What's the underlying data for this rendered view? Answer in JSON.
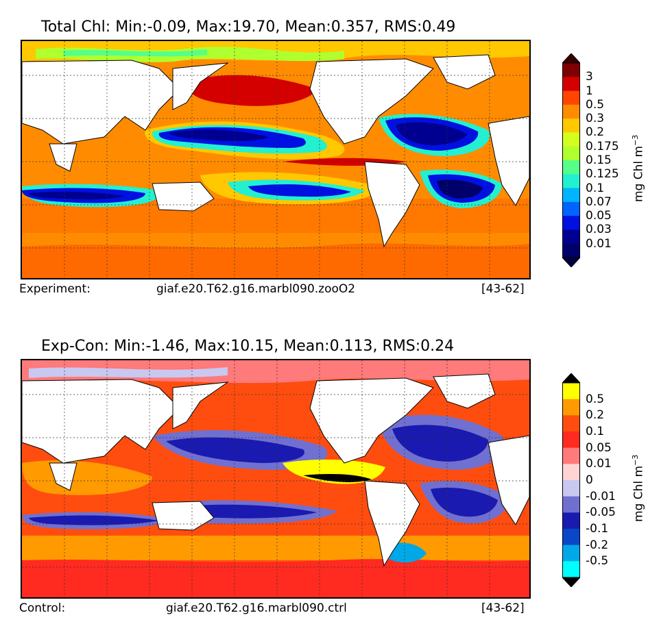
{
  "top_panel": {
    "title": "Total Chl: Min:-0.09, Max:19.70, Mean:0.357, RMS:0.49",
    "caption_label": "Experiment:",
    "caption_case": "giaf.e20.T62.g16.marbl090.zooO2",
    "caption_years": "[43-62]",
    "colorbar_unit": "mg Chl m",
    "colorbar_unit_exp": "−3",
    "levels": [
      "3",
      "1",
      "0.5",
      "0.3",
      "0.2",
      "0.175",
      "0.15",
      "0.125",
      "0.1",
      "0.07",
      "0.05",
      "0.03",
      "0.01"
    ],
    "colors": [
      "#7f0000",
      "#d40000",
      "#ff4500",
      "#ff8c00",
      "#ffc800",
      "#d4ff1e",
      "#b0ff2e",
      "#55ff8a",
      "#22f0d0",
      "#00b4ff",
      "#0064ff",
      "#0010e0",
      "#000090",
      "#00006a"
    ],
    "top_arrow_color": "#3a0000",
    "bottom_arrow_color": "#000040"
  },
  "bottom_panel": {
    "title": "Exp-Con: Min:-1.46, Max:10.15, Mean:0.113, RMS:0.24",
    "caption_label": "Control:",
    "caption_case": "giaf.e20.T62.g16.marbl090.ctrl",
    "caption_years": "[43-62]",
    "colorbar_unit": "mg Chl m",
    "colorbar_unit_exp": "−3",
    "levels": [
      "0.5",
      "0.2",
      "0.1",
      "0.05",
      "0.01",
      "0",
      "-0.01",
      "-0.05",
      "-0.1",
      "-0.2",
      "-0.5"
    ],
    "colors": [
      "#ffff00",
      "#ff9a00",
      "#ff4d10",
      "#ff2a20",
      "#ff7a7a",
      "#ffd4d4",
      "#c8c8f0",
      "#7070d0",
      "#1a1ab0",
      "#0a46c8",
      "#00a8e8",
      "#00ffff"
    ],
    "top_arrow_color": "#000000",
    "bottom_arrow_color": "#000000"
  }
}
